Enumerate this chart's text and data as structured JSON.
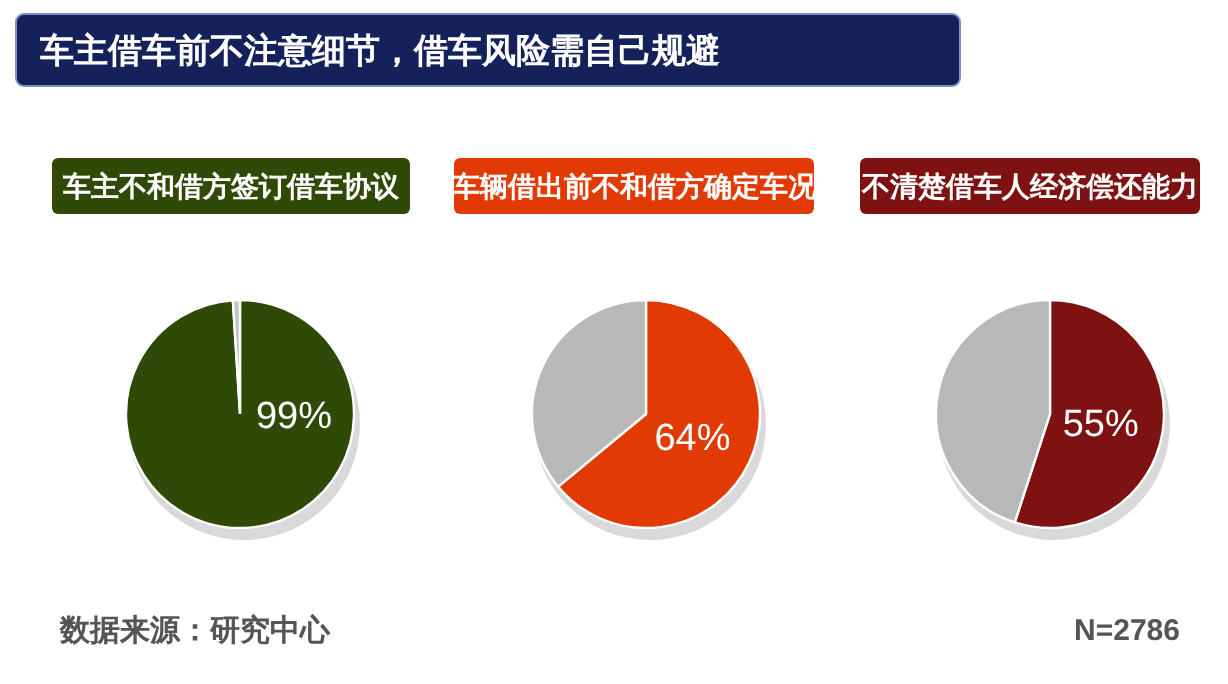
{
  "chart_data": [
    {
      "type": "other",
      "title": "车主借车前不注意细节，借车风险需自己规避",
      "annotations": [
        "数据来源：研究中心",
        "N=2786"
      ]
    },
    {
      "type": "pie",
      "title": "车主不和借方签订借车协议",
      "categories": [
        null,
        null
      ],
      "values": [
        99,
        1
      ],
      "colors": [
        "#2f4a06",
        "#c4c4c4"
      ],
      "value_labels": [
        "99%",
        null
      ]
    },
    {
      "type": "pie",
      "title": "车辆借出前不和借方确定车况",
      "categories": [
        null,
        null
      ],
      "values": [
        64,
        36
      ],
      "colors": [
        "#e23a05",
        "#b8b8b8"
      ],
      "value_labels": [
        "64%",
        null
      ]
    },
    {
      "type": "pie",
      "title": "不清楚借车人经济偿还能力",
      "categories": [
        null,
        null
      ],
      "values": [
        55,
        45
      ],
      "colors": [
        "#7e1212",
        "#b8b8b8"
      ],
      "value_labels": [
        "55%",
        null
      ]
    }
  ]
}
